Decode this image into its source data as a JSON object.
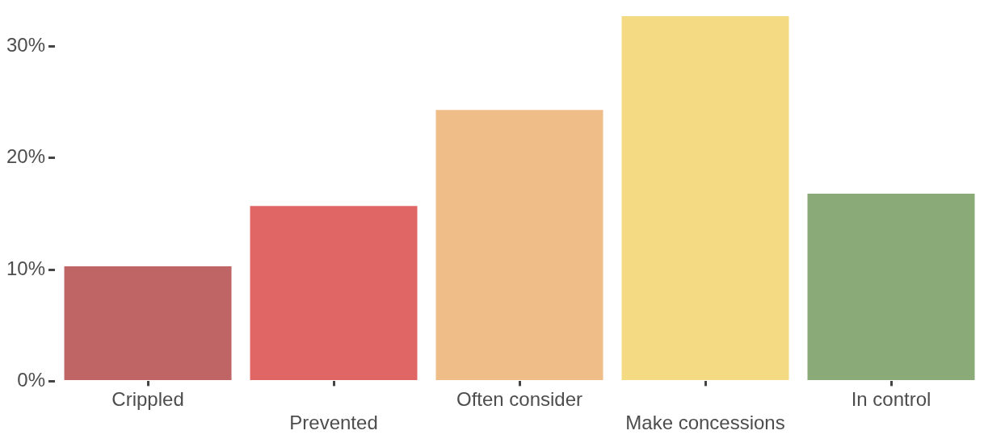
{
  "chart_data": {
    "type": "bar",
    "categories": [
      "Crippled",
      "Prevented",
      "Often consider",
      "Make concessions",
      "In control"
    ],
    "values": [
      10.3,
      15.7,
      24.3,
      32.7,
      16.8
    ],
    "colors": [
      "#bf6565",
      "#e06666",
      "#efbd87",
      "#f5da84",
      "#8aab78"
    ],
    "ylim": [
      0,
      32.7
    ],
    "yticks": [
      {
        "value": 0,
        "label": "0%"
      },
      {
        "value": 10,
        "label": "10%"
      },
      {
        "value": 20,
        "label": "20%"
      },
      {
        "value": 30,
        "label": "30%"
      }
    ],
    "grid": false,
    "legend": false
  }
}
